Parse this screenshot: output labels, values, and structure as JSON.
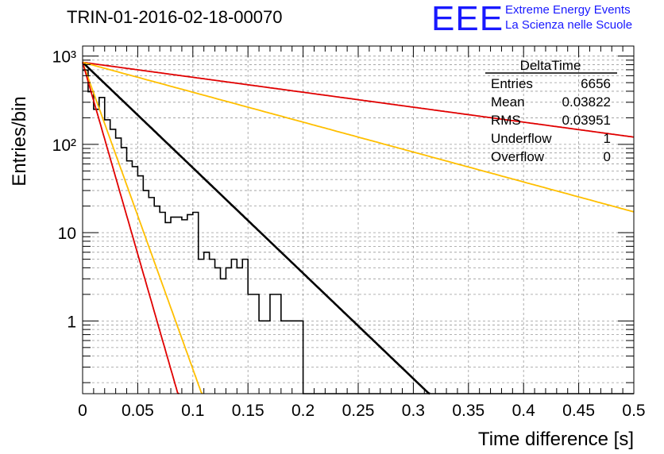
{
  "header": {
    "run_title": "TRIN-01-2016-02-18-00070",
    "logo_text": "EEE",
    "org_line1": "Extreme Energy Events",
    "org_line2": "La Scienza nelle Scuole"
  },
  "stats_box": {
    "title": "DeltaTime",
    "rows": [
      {
        "label": "Entries",
        "value": "6656"
      },
      {
        "label": "Mean",
        "value": "0.03822"
      },
      {
        "label": "RMS",
        "value": "0.03951"
      },
      {
        "label": "Underflow",
        "value": "1"
      },
      {
        "label": "Overflow",
        "value": "0"
      }
    ]
  },
  "colors": {
    "histogram": "#000000",
    "fit": "#000000",
    "red": "#e00000",
    "orange": "#ffbf00",
    "grid": "#999999"
  },
  "chart_data": {
    "type": "line",
    "title": "TRIN-01-2016-02-18-00070",
    "xlabel": "Time difference [s]",
    "ylabel": "Entries/bin",
    "xlim": [
      0,
      0.5
    ],
    "ylim": [
      0.15,
      1300
    ],
    "yscale": "log",
    "grid": true,
    "legend": "top-right",
    "x_ticks": [
      "0",
      "0.05",
      "0.1",
      "0.15",
      "0.2",
      "0.25",
      "0.3",
      "0.35",
      "0.4",
      "0.45",
      "0.5"
    ],
    "y_ticks": [
      {
        "value": 1,
        "label": "1"
      },
      {
        "value": 10,
        "label": "10"
      },
      {
        "value": 100,
        "label": "10²"
      },
      {
        "value": 1000,
        "label": "10³"
      }
    ],
    "histogram": {
      "bin_width": 0.005,
      "values": [
        690,
        395,
        250,
        340,
        190,
        148,
        118,
        92,
        65,
        56,
        44,
        30,
        25,
        20,
        17,
        13,
        15,
        15,
        14,
        16,
        17,
        5,
        6,
        5,
        4,
        3,
        4,
        5,
        4,
        5,
        2,
        2,
        1,
        1,
        2,
        2,
        1,
        1,
        1,
        1,
        0,
        0,
        0,
        0,
        0,
        0,
        0,
        0,
        0,
        0,
        0,
        0,
        0,
        0,
        0,
        0,
        0,
        0,
        0,
        0,
        0,
        0,
        0,
        0,
        0,
        0,
        0,
        0,
        0,
        0,
        0,
        0,
        0,
        0,
        0,
        0,
        0,
        0,
        0,
        0,
        0,
        0,
        0,
        0,
        0,
        0,
        0,
        0,
        0,
        0,
        0,
        0,
        0,
        0,
        0,
        0,
        0,
        0,
        0,
        0
      ],
      "note_values": "approximate"
    },
    "series": [
      {
        "color": "black",
        "kind": "exponential",
        "y0": 850,
        "slope_per_s": -27.5
      },
      {
        "color": "red",
        "kind": "exponential",
        "y0": 850,
        "slope_per_s": -3.9
      },
      {
        "color": "orange",
        "kind": "exponential",
        "y0": 850,
        "slope_per_s": -7.8
      },
      {
        "color": "orange",
        "kind": "exponential",
        "y0": 850,
        "slope_per_s": -80
      },
      {
        "color": "red",
        "kind": "exponential",
        "y0": 850,
        "slope_per_s": -100
      }
    ]
  }
}
